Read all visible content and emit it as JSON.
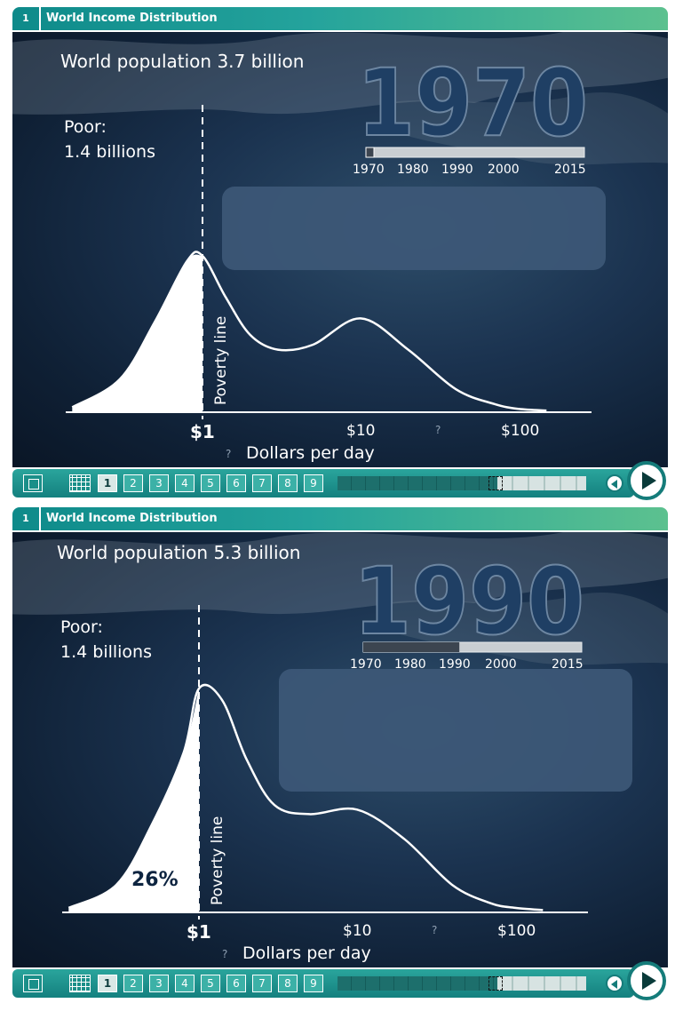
{
  "panels": [
    {
      "number": "1",
      "title": "World Income Distribution",
      "population_label": "World population 3.7 billion",
      "year": "1970",
      "poor_label": "Poor:",
      "poor_value": "1.4 billions",
      "poverty_line_label": "Poverty line",
      "percent_label": "",
      "timeline_labels": [
        "1970",
        "1980",
        "1990",
        "2000",
        "2015"
      ],
      "timeline_progress": 0,
      "page_numbers": [
        "1",
        "2",
        "3",
        "4",
        "5",
        "6",
        "7",
        "8",
        "9"
      ],
      "active_page": "1"
    },
    {
      "number": "1",
      "title": "World Income Distribution",
      "population_label": "World population 5.3 billion",
      "year": "1990",
      "poor_label": "Poor:",
      "poor_value": "1.4 billions",
      "poverty_line_label": "Poverty line",
      "percent_label": "26%",
      "timeline_labels": [
        "1970",
        "1980",
        "1990",
        "2000",
        "2015"
      ],
      "timeline_progress": 0.44,
      "page_numbers": [
        "1",
        "2",
        "3",
        "4",
        "5",
        "6",
        "7",
        "8",
        "9"
      ],
      "active_page": "1"
    }
  ],
  "chart_data": [
    {
      "type": "area",
      "title": "World Income Distribution",
      "xlabel": "Dollars per day",
      "x_scale": "log",
      "x_ticks": [
        "$1",
        "$10",
        "?",
        "$100"
      ],
      "poverty_line_x": 1,
      "annotations": [
        "World population 3.7 billion",
        "1970",
        "Poor:",
        "1.4 billions",
        "Poverty line"
      ],
      "x": [
        0.15,
        0.3,
        0.5,
        0.8,
        1,
        1.4,
        2,
        3,
        5,
        10,
        20,
        40,
        70,
        100,
        150
      ],
      "y": [
        0.03,
        0.2,
        0.55,
        0.92,
        0.95,
        0.7,
        0.47,
        0.38,
        0.41,
        0.57,
        0.38,
        0.14,
        0.05,
        0.02,
        0.01
      ]
    },
    {
      "type": "area",
      "title": "World Income Distribution",
      "xlabel": "Dollars per day",
      "x_scale": "log",
      "x_ticks": [
        "$1",
        "$10",
        "?",
        "$100"
      ],
      "poverty_line_x": 1,
      "annotations": [
        "World population 5.3 billion",
        "1990",
        "Poor:",
        "1.4 billions",
        "Poverty line",
        "26%"
      ],
      "poor_share_percent": 26,
      "x": [
        0.15,
        0.3,
        0.5,
        0.8,
        1,
        1.4,
        2,
        3,
        5,
        10,
        20,
        40,
        70,
        100,
        150
      ],
      "y": [
        0.02,
        0.12,
        0.38,
        0.7,
        0.98,
        0.93,
        0.67,
        0.47,
        0.43,
        0.45,
        0.32,
        0.12,
        0.04,
        0.02,
        0.01
      ]
    }
  ]
}
